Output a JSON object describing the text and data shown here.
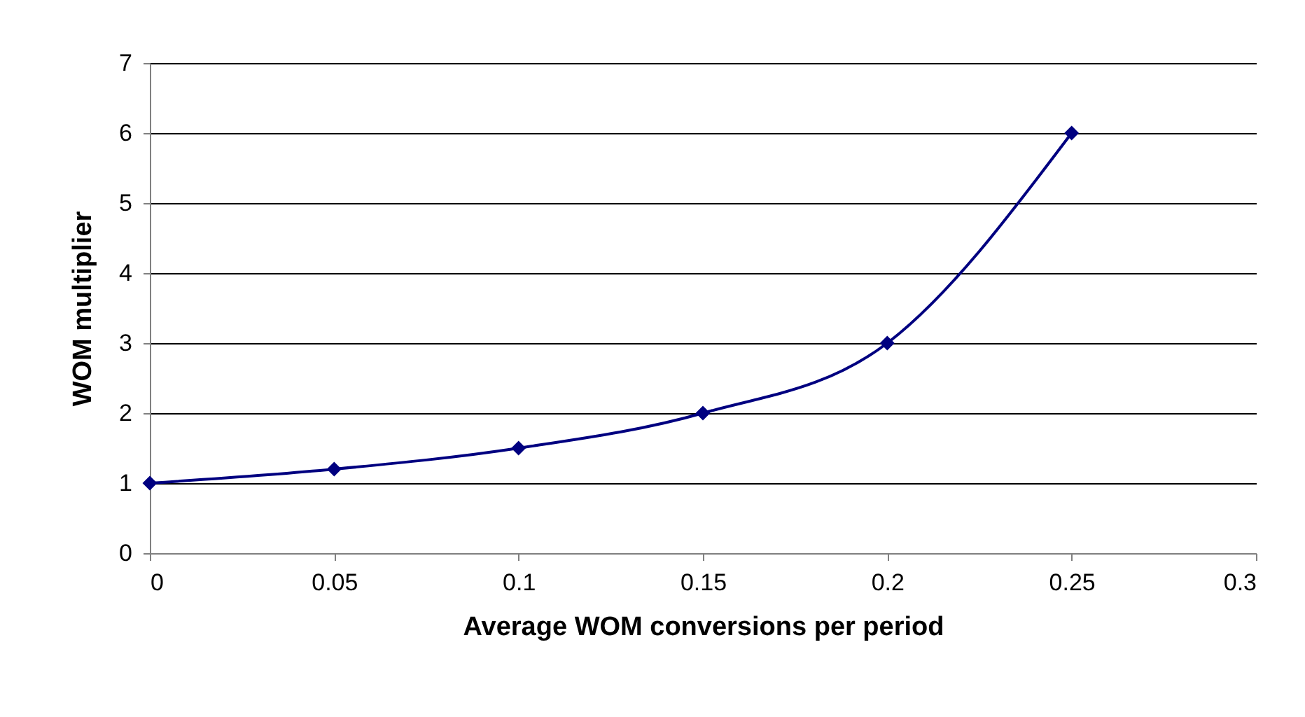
{
  "chart_data": {
    "type": "line",
    "xlabel": "Average WOM conversions per period",
    "ylabel": "WOM multiplier",
    "x": [
      0,
      0.05,
      0.1,
      0.15,
      0.2,
      0.25
    ],
    "series": [
      {
        "color": "#000080",
        "values": [
          1,
          1.2,
          1.5,
          2,
          3,
          6
        ]
      }
    ],
    "xlim": [
      0,
      0.3
    ],
    "xticks": [
      0,
      0.05,
      0.1,
      0.15,
      0.2,
      0.25,
      0.3
    ],
    "ylim": [
      0,
      7
    ],
    "yticks": [
      0,
      1,
      2,
      3,
      4,
      5,
      6,
      7
    ],
    "grid": "y",
    "marker": "diamond",
    "line_style": "solid",
    "legend": false
  }
}
